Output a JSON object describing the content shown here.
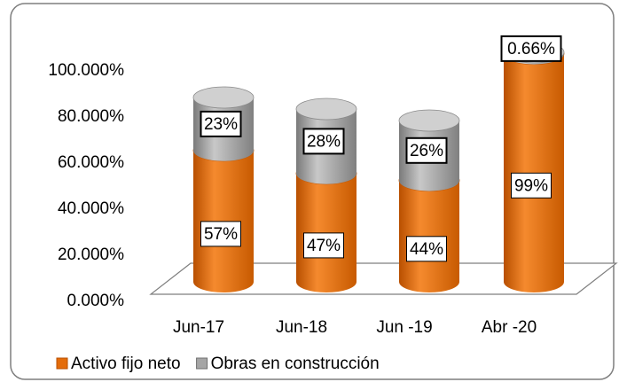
{
  "chart_data": {
    "type": "bar3d_stacked",
    "categories": [
      "Jun-17",
      "Jun-18",
      "Jun -19",
      "Abr -20"
    ],
    "series": [
      {
        "name": "Activo fijo neto",
        "color": "#e46c0a",
        "values": [
          57,
          47,
          44,
          99
        ],
        "value_labels": [
          "57%",
          "47%",
          "44%",
          "99%"
        ]
      },
      {
        "name": "Obras en construcción",
        "color": "#a6a6a6",
        "values": [
          23,
          28,
          26,
          0.66
        ],
        "value_labels": [
          "23%",
          "28%",
          "26%",
          "0.66%"
        ]
      }
    ],
    "ylim": [
      0,
      100
    ],
    "yticks": [
      {
        "value": 0,
        "label": "0.000%"
      },
      {
        "value": 20,
        "label": "20.000%"
      },
      {
        "value": 40,
        "label": "40.000%"
      },
      {
        "value": 60,
        "label": "60.000%"
      },
      {
        "value": 80,
        "label": "80.000%"
      },
      {
        "value": 100,
        "label": "100.000%"
      }
    ],
    "legend": "bottom"
  }
}
